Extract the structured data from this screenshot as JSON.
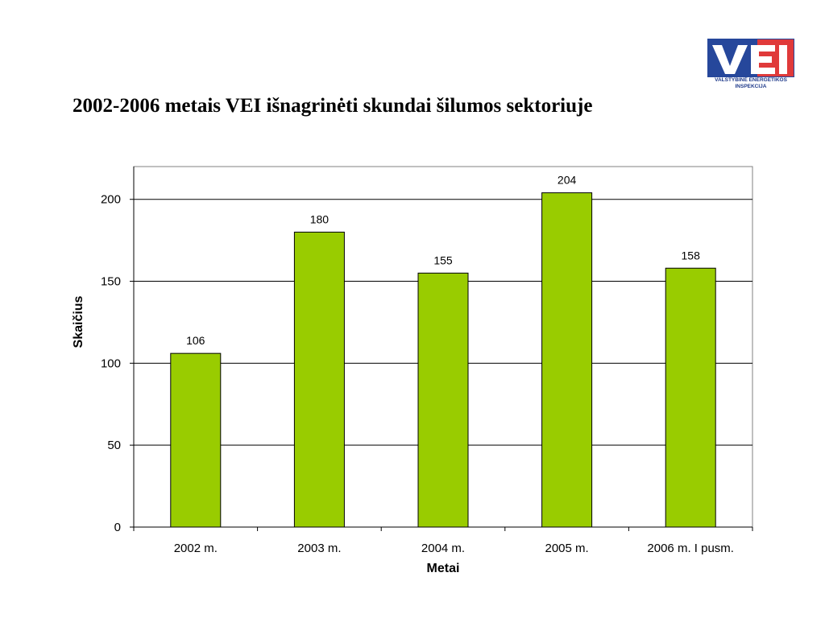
{
  "slide": {
    "title": "2002-2006 metais VEI išnagrinėti skundai šilumos sektoriuje"
  },
  "logo": {
    "text": "VEI",
    "caption_line1": "VALSTYBINĖ ENERGETIKOS",
    "caption_line2": "INSPEKCIJA",
    "colors": {
      "blue": "#26479b",
      "red": "#e03a3a",
      "white": "#ffffff"
    }
  },
  "chart_data": {
    "type": "bar",
    "title": "",
    "xlabel": "Metai",
    "ylabel": "Skaičius",
    "categories": [
      "2002 m.",
      "2003 m.",
      "2004 m.",
      "2005 m.",
      "2006 m. I pusm."
    ],
    "values": [
      106,
      180,
      155,
      204,
      158
    ],
    "data_labels": [
      "106",
      "180",
      "155",
      "204",
      "158"
    ],
    "ylim": [
      0,
      220
    ],
    "yticks": [
      0,
      50,
      100,
      150,
      200
    ],
    "ytick_labels": [
      "0",
      "50",
      "100",
      "150",
      "200"
    ],
    "grid": true,
    "legend": "none",
    "colors": {
      "bar_fill": "#99cc00",
      "bar_stroke": "#000000",
      "grid": "#000000",
      "plot_border": "#808080"
    }
  }
}
